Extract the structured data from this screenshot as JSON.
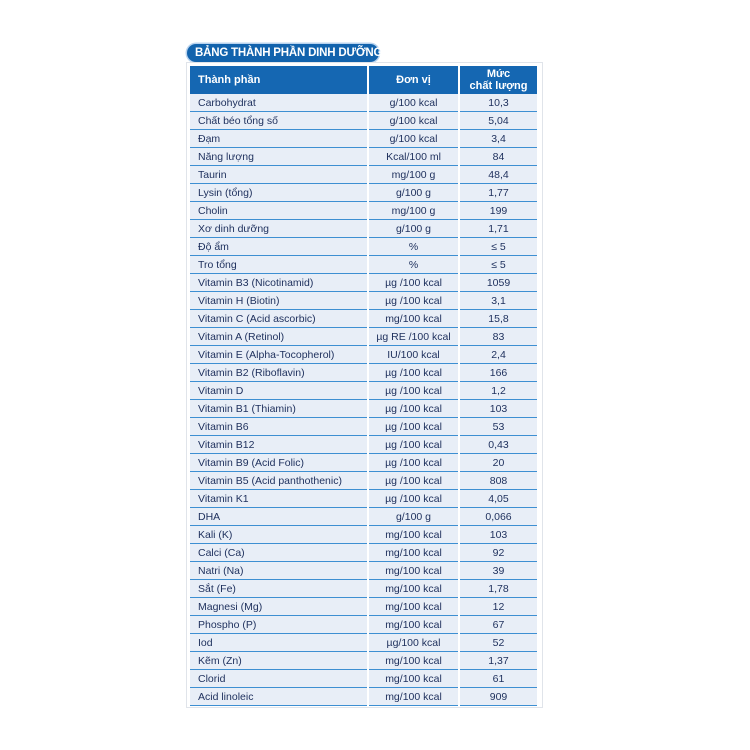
{
  "title": "BẢNG THÀNH PHẦN DINH DƯỠNG",
  "headers": {
    "name": "Thành phần",
    "unit": "Đơn vị",
    "value_line1": "Mức",
    "value_line2": "chất lượng"
  },
  "rows": [
    {
      "name": "Carbohydrat",
      "unit": "g/100 kcal",
      "value": "10,3"
    },
    {
      "name": "Chất béo tổng số",
      "unit": "g/100 kcal",
      "value": "5,04"
    },
    {
      "name": "Đạm",
      "unit": "g/100 kcal",
      "value": "3,4"
    },
    {
      "name": "Năng lượng",
      "unit": "Kcal/100 ml",
      "value": "84"
    },
    {
      "name": "Taurin",
      "unit": "mg/100 g",
      "value": "48,4"
    },
    {
      "name": "Lysin (tổng)",
      "unit": "g/100 g",
      "value": "1,77"
    },
    {
      "name": "Cholin",
      "unit": "mg/100 g",
      "value": "199"
    },
    {
      "name": "Xơ dinh dưỡng",
      "unit": "g/100 g",
      "value": "1,71"
    },
    {
      "name": "Độ ẩm",
      "unit": "%",
      "value": "≤ 5"
    },
    {
      "name": "Tro tổng",
      "unit": "%",
      "value": "≤ 5"
    },
    {
      "name": "Vitamin B3 (Nicotinamid)",
      "unit": "µg /100 kcal",
      "value": "1059"
    },
    {
      "name": "Vitamin H (Biotin)",
      "unit": "µg /100 kcal",
      "value": "3,1"
    },
    {
      "name": "Vitamin C (Acid ascorbic)",
      "unit": "mg/100 kcal",
      "value": "15,8"
    },
    {
      "name": "Vitamin A (Retinol)",
      "unit": "µg RE /100 kcal",
      "value": "83"
    },
    {
      "name": "Vitamin E (Alpha-Tocopherol)",
      "unit": "IU/100 kcal",
      "value": "2,4"
    },
    {
      "name": "Vitamin B2 (Riboflavin)",
      "unit": "µg /100 kcal",
      "value": "166"
    },
    {
      "name": "Vitamin D",
      "unit": "µg /100 kcal",
      "value": "1,2"
    },
    {
      "name": "Vitamin B1 (Thiamin)",
      "unit": "µg /100 kcal",
      "value": "103"
    },
    {
      "name": "Vitamin B6",
      "unit": "µg /100 kcal",
      "value": "53"
    },
    {
      "name": "Vitamin B12",
      "unit": "µg /100 kcal",
      "value": "0,43"
    },
    {
      "name": "Vitamin B9 (Acid Folic)",
      "unit": "µg /100 kcal",
      "value": "20"
    },
    {
      "name": "Vitamin B5 (Acid panthothenic)",
      "unit": "µg /100 kcal",
      "value": "808"
    },
    {
      "name": "Vitamin K1",
      "unit": "µg /100 kcal",
      "value": "4,05"
    },
    {
      "name": "DHA",
      "unit": "g/100 g",
      "value": "0,066"
    },
    {
      "name": "Kali (K)",
      "unit": "mg/100 kcal",
      "value": "103"
    },
    {
      "name": "Calci (Ca)",
      "unit": "mg/100 kcal",
      "value": "92"
    },
    {
      "name": "Natri (Na)",
      "unit": "mg/100 kcal",
      "value": "39"
    },
    {
      "name": "Sắt (Fe)",
      "unit": "mg/100 kcal",
      "value": "1,78"
    },
    {
      "name": "Magnesi (Mg)",
      "unit": "mg/100 kcal",
      "value": "12"
    },
    {
      "name": "Phospho (P)",
      "unit": "mg/100 kcal",
      "value": "67"
    },
    {
      "name": "Iod",
      "unit": "µg/100 kcal",
      "value": "52"
    },
    {
      "name": "Kẽm (Zn)",
      "unit": "mg/100 kcal",
      "value": "1,37"
    },
    {
      "name": "Clorid",
      "unit": "mg/100 kcal",
      "value": "61"
    },
    {
      "name": "Acid linoleic",
      "unit": "mg/100 kcal",
      "value": "909"
    }
  ]
}
